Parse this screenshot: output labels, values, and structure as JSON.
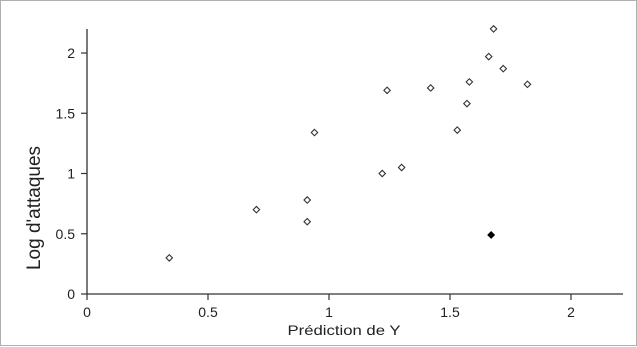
{
  "chart_data": {
    "type": "scatter",
    "title": "",
    "xlabel": "Prédiction de Y",
    "ylabel": "Log d'attaques",
    "xlim": [
      0,
      2.25
    ],
    "ylim": [
      0,
      2.25
    ],
    "xticks": [
      "0",
      "0.5",
      "1",
      "1.5",
      "2"
    ],
    "yticks": [
      "0",
      "0.5",
      "1",
      "1.5",
      "2"
    ],
    "grid": false,
    "series": [
      {
        "marker": "open-diamond",
        "color": "#333333",
        "points": [
          {
            "x": 0.34,
            "y": 0.3
          },
          {
            "x": 0.7,
            "y": 0.7
          },
          {
            "x": 0.91,
            "y": 0.6
          },
          {
            "x": 0.91,
            "y": 0.78
          },
          {
            "x": 0.94,
            "y": 1.34
          },
          {
            "x": 1.22,
            "y": 1.0
          },
          {
            "x": 1.24,
            "y": 1.69
          },
          {
            "x": 1.3,
            "y": 1.05
          },
          {
            "x": 1.42,
            "y": 1.71
          },
          {
            "x": 1.53,
            "y": 1.36
          },
          {
            "x": 1.57,
            "y": 1.58
          },
          {
            "x": 1.58,
            "y": 1.76
          },
          {
            "x": 1.66,
            "y": 1.97
          },
          {
            "x": 1.68,
            "y": 2.2
          },
          {
            "x": 1.72,
            "y": 1.87
          },
          {
            "x": 1.82,
            "y": 1.74
          }
        ]
      },
      {
        "marker": "filled-diamond",
        "color": "#000000",
        "points": [
          {
            "x": 1.67,
            "y": 0.49
          }
        ]
      }
    ]
  }
}
